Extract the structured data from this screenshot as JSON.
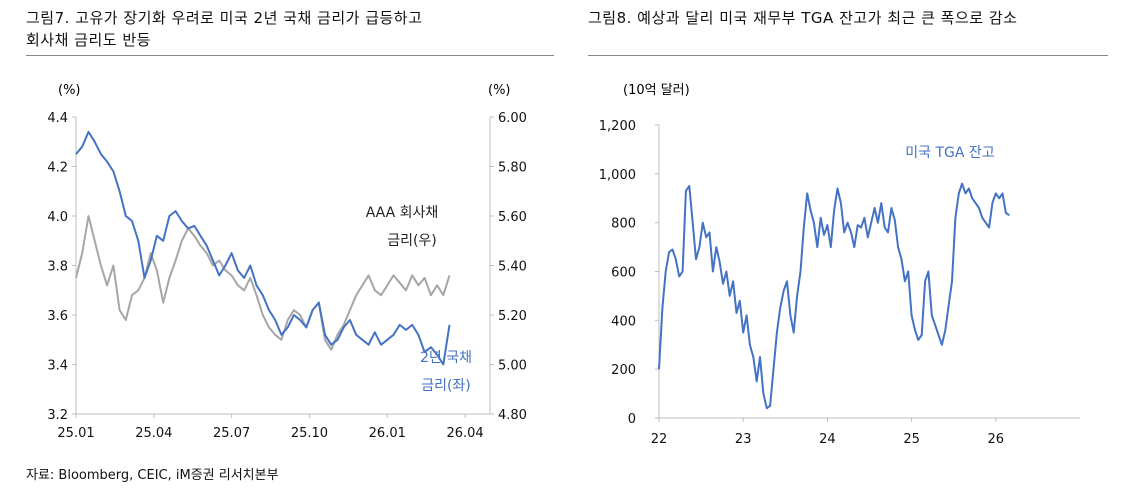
{
  "left_panel": {
    "title_line1": "그림7.  고유가 장기화 우려로 미국 2년 국채 금리가 급등하고",
    "title_line2": "회사채 금리도 반등"
  },
  "right_panel": {
    "title_line1": "그림8.  예상과 달리 미국 재무부 TGA 잔고가 최근 큰 폭으로 감소"
  },
  "footer": {
    "source": "자료: Bloomberg, CEIC, iM증권 리서치본부"
  },
  "colors": {
    "blue": "#4472C4",
    "gray": "#A6A6A6",
    "axis": "#BFBFBF"
  },
  "chart_data": [
    {
      "type": "line",
      "title": "",
      "unit_left": "(%)",
      "unit_right": "(%)",
      "x_ticks": [
        "25.01",
        "25.04",
        "25.07",
        "25.10",
        "26.01",
        "26.04"
      ],
      "x_range": [
        2025.0,
        2026.33
      ],
      "y_left_ticks": [
        "3.2",
        "3.4",
        "3.6",
        "3.8",
        "4.0",
        "4.2",
        "4.4"
      ],
      "y_left_range": [
        3.2,
        4.4
      ],
      "y_right_ticks": [
        "4.80",
        "5.00",
        "5.20",
        "5.40",
        "5.60",
        "5.80",
        "6.00"
      ],
      "y_right_range": [
        4.8,
        6.0
      ],
      "series": [
        {
          "name_line1": "2년 국채",
          "name_line2": "금리(좌)",
          "axis": "left",
          "color": "blue",
          "x": [
            2025.0,
            2025.02,
            2025.04,
            2025.06,
            2025.08,
            2025.1,
            2025.12,
            2025.14,
            2025.16,
            2025.18,
            2025.2,
            2025.22,
            2025.24,
            2025.26,
            2025.28,
            2025.3,
            2025.32,
            2025.34,
            2025.36,
            2025.38,
            2025.4,
            2025.42,
            2025.44,
            2025.46,
            2025.48,
            2025.5,
            2025.52,
            2025.54,
            2025.56,
            2025.58,
            2025.6,
            2025.62,
            2025.64,
            2025.66,
            2025.68,
            2025.7,
            2025.72,
            2025.74,
            2025.76,
            2025.78,
            2025.8,
            2025.82,
            2025.84,
            2025.86,
            2025.88,
            2025.9,
            2025.92,
            2025.94,
            2025.96,
            2025.98,
            2026.0,
            2026.02,
            2026.04,
            2026.06,
            2026.08,
            2026.1,
            2026.12,
            2026.14,
            2026.16,
            2026.18,
            2026.2
          ],
          "y": [
            4.25,
            4.28,
            4.34,
            4.3,
            4.25,
            4.22,
            4.18,
            4.1,
            4.0,
            3.98,
            3.9,
            3.75,
            3.82,
            3.92,
            3.9,
            4.0,
            4.02,
            3.98,
            3.95,
            3.96,
            3.92,
            3.88,
            3.82,
            3.76,
            3.8,
            3.85,
            3.78,
            3.75,
            3.8,
            3.72,
            3.68,
            3.62,
            3.58,
            3.52,
            3.55,
            3.6,
            3.58,
            3.55,
            3.62,
            3.65,
            3.52,
            3.48,
            3.5,
            3.55,
            3.58,
            3.52,
            3.5,
            3.48,
            3.53,
            3.48,
            3.5,
            3.52,
            3.56,
            3.54,
            3.56,
            3.52,
            3.45,
            3.47,
            3.44,
            3.4,
            3.56
          ]
        },
        {
          "name_line1": "AAA 회사채",
          "name_line2": "금리(우)",
          "axis": "right",
          "color": "gray",
          "x": [
            2025.0,
            2025.02,
            2025.04,
            2025.06,
            2025.08,
            2025.1,
            2025.12,
            2025.14,
            2025.16,
            2025.18,
            2025.2,
            2025.22,
            2025.24,
            2025.26,
            2025.28,
            2025.3,
            2025.32,
            2025.34,
            2025.36,
            2025.38,
            2025.4,
            2025.42,
            2025.44,
            2025.46,
            2025.48,
            2025.5,
            2025.52,
            2025.54,
            2025.56,
            2025.58,
            2025.6,
            2025.62,
            2025.64,
            2025.66,
            2025.68,
            2025.7,
            2025.72,
            2025.74,
            2025.76,
            2025.78,
            2025.8,
            2025.82,
            2025.84,
            2025.86,
            2025.88,
            2025.9,
            2025.92,
            2025.94,
            2025.96,
            2025.98,
            2026.0,
            2026.02,
            2026.04,
            2026.06,
            2026.08,
            2026.1,
            2026.12,
            2026.14,
            2026.16,
            2026.18,
            2026.2
          ],
          "y": [
            5.35,
            5.45,
            5.6,
            5.5,
            5.4,
            5.32,
            5.4,
            5.22,
            5.18,
            5.28,
            5.3,
            5.35,
            5.45,
            5.38,
            5.25,
            5.35,
            5.42,
            5.5,
            5.55,
            5.52,
            5.48,
            5.45,
            5.4,
            5.42,
            5.38,
            5.36,
            5.32,
            5.3,
            5.35,
            5.28,
            5.2,
            5.15,
            5.12,
            5.1,
            5.18,
            5.22,
            5.2,
            5.15,
            5.22,
            5.25,
            5.1,
            5.06,
            5.12,
            5.16,
            5.22,
            5.28,
            5.32,
            5.36,
            5.3,
            5.28,
            5.32,
            5.36,
            5.33,
            5.3,
            5.36,
            5.32,
            5.35,
            5.28,
            5.32,
            5.28,
            5.36
          ]
        }
      ]
    },
    {
      "type": "line",
      "title": "",
      "unit_left": "(10억 달러)",
      "x_ticks": [
        "22",
        "23",
        "24",
        "25",
        "26"
      ],
      "x_range": [
        2022.0,
        2027.0
      ],
      "y_left_ticks": [
        "0",
        "200",
        "400",
        "600",
        "800",
        "1,000",
        "1,200"
      ],
      "y_left_range": [
        0,
        1200
      ],
      "series": [
        {
          "name_line1": "미국 TGA 잔고",
          "axis": "left",
          "color": "blue",
          "x": [
            2022.0,
            2022.04,
            2022.08,
            2022.12,
            2022.16,
            2022.2,
            2022.24,
            2022.28,
            2022.32,
            2022.36,
            2022.4,
            2022.44,
            2022.48,
            2022.52,
            2022.56,
            2022.6,
            2022.64,
            2022.68,
            2022.72,
            2022.76,
            2022.8,
            2022.84,
            2022.88,
            2022.92,
            2022.96,
            2023.0,
            2023.04,
            2023.08,
            2023.12,
            2023.16,
            2023.2,
            2023.24,
            2023.28,
            2023.32,
            2023.36,
            2023.4,
            2023.44,
            2023.48,
            2023.52,
            2023.56,
            2023.6,
            2023.64,
            2023.68,
            2023.72,
            2023.76,
            2023.8,
            2023.84,
            2023.88,
            2023.92,
            2023.96,
            2024.0,
            2024.04,
            2024.08,
            2024.12,
            2024.16,
            2024.2,
            2024.24,
            2024.28,
            2024.32,
            2024.36,
            2024.4,
            2024.44,
            2024.48,
            2024.52,
            2024.56,
            2024.6,
            2024.64,
            2024.68,
            2024.72,
            2024.76,
            2024.8,
            2024.84,
            2024.88,
            2024.92,
            2024.96,
            2025.0,
            2025.04,
            2025.08,
            2025.12,
            2025.16,
            2025.2,
            2025.24,
            2025.28,
            2025.32,
            2025.36,
            2025.4,
            2025.44,
            2025.48,
            2025.52,
            2025.56,
            2025.6,
            2025.64,
            2025.68,
            2025.72,
            2025.76,
            2025.8,
            2025.84,
            2025.88,
            2025.92,
            2025.96,
            2026.0,
            2026.04,
            2026.08,
            2026.12,
            2026.16
          ],
          "y": [
            200,
            450,
            600,
            680,
            690,
            650,
            580,
            600,
            930,
            950,
            800,
            650,
            700,
            800,
            740,
            760,
            600,
            700,
            640,
            550,
            600,
            500,
            560,
            430,
            480,
            350,
            420,
            300,
            250,
            150,
            250,
            100,
            40,
            50,
            200,
            350,
            450,
            520,
            560,
            420,
            350,
            500,
            600,
            780,
            920,
            850,
            800,
            700,
            820,
            750,
            790,
            700,
            850,
            940,
            880,
            760,
            800,
            760,
            700,
            790,
            780,
            820,
            740,
            800,
            860,
            800,
            880,
            780,
            760,
            860,
            810,
            700,
            650,
            560,
            600,
            420,
            360,
            320,
            340,
            560,
            600,
            420,
            380,
            340,
            300,
            360,
            460,
            560,
            820,
            920,
            960,
            920,
            940,
            900,
            880,
            860,
            820,
            800,
            780,
            880,
            920,
            900,
            920,
            840,
            830
          ]
        }
      ]
    }
  ]
}
